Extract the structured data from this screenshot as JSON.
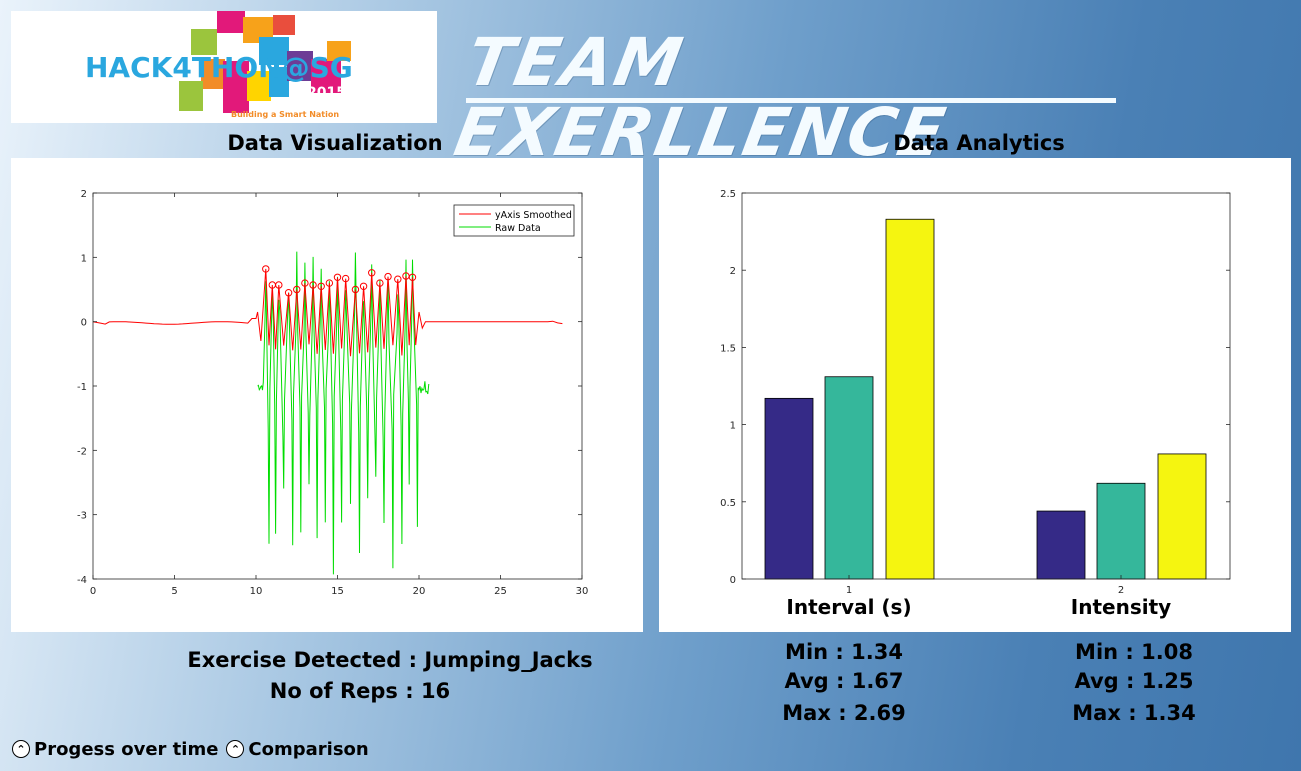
{
  "logo": {
    "text": "HACK4THON@SG",
    "year": "2015",
    "tagline": "Building a Smart Nation"
  },
  "header": {
    "team_title": "TEAM EXERLLENCE"
  },
  "sections": {
    "left_title": "Data Visualization",
    "right_title": "Data Analytics"
  },
  "exercise": {
    "detected": "Exercise Detected : Jumping_Jacks",
    "reps": "No of Reps : 16"
  },
  "stats": {
    "interval": {
      "min": "Min : 1.34",
      "avg": "Avg : 1.67",
      "max": "Max : 2.69"
    },
    "intensity": {
      "min": "Min : 1.08",
      "avg": "Avg : 1.25",
      "max": "Max : 1.34"
    }
  },
  "bottom": {
    "progress_label": "Progess over time",
    "comparison_label": "Comparison"
  },
  "colors": {
    "bar1": "#352a87",
    "bar2": "#35b79b",
    "bar3": "#f5f510",
    "smoothed": "#ff0000",
    "raw": "#00dd00"
  },
  "chart_data": [
    {
      "type": "line",
      "xlim": [
        0,
        30
      ],
      "ylim": [
        -4,
        2
      ],
      "xticks": [
        0,
        5,
        10,
        15,
        20,
        25,
        30
      ],
      "yticks": [
        -4,
        -3,
        -2,
        -1,
        0,
        1,
        2
      ],
      "legend": "top-right",
      "series": [
        {
          "name": "yAxis Smoothed",
          "color": "#ff0000"
        },
        {
          "name": "Raw Data",
          "color": "#00dd00"
        }
      ],
      "peaks_x": [
        10.6,
        11.0,
        11.4,
        12.0,
        12.5,
        13.0,
        13.5,
        14.0,
        14.5,
        15.0,
        15.5,
        16.1,
        16.6,
        17.1,
        17.6,
        18.1,
        18.7,
        19.2,
        19.6
      ],
      "peaks_y": [
        0.82,
        0.57,
        0.57,
        0.45,
        0.5,
        0.6,
        0.57,
        0.55,
        0.6,
        0.69,
        0.67,
        0.5,
        0.55,
        0.76,
        0.6,
        0.7,
        0.66,
        0.71,
        0.69
      ]
    },
    {
      "type": "bar",
      "categories": [
        "1",
        "2"
      ],
      "ylim": [
        0,
        2.5
      ],
      "yticks": [
        0,
        0.5,
        1,
        1.5,
        2,
        2.5
      ],
      "series": [
        {
          "values": [
            1.17,
            0.44
          ]
        },
        {
          "values": [
            1.31,
            0.62
          ]
        },
        {
          "values": [
            2.33,
            0.81
          ]
        }
      ],
      "category_labels": [
        "Interval (s)",
        "Intensity"
      ]
    }
  ]
}
